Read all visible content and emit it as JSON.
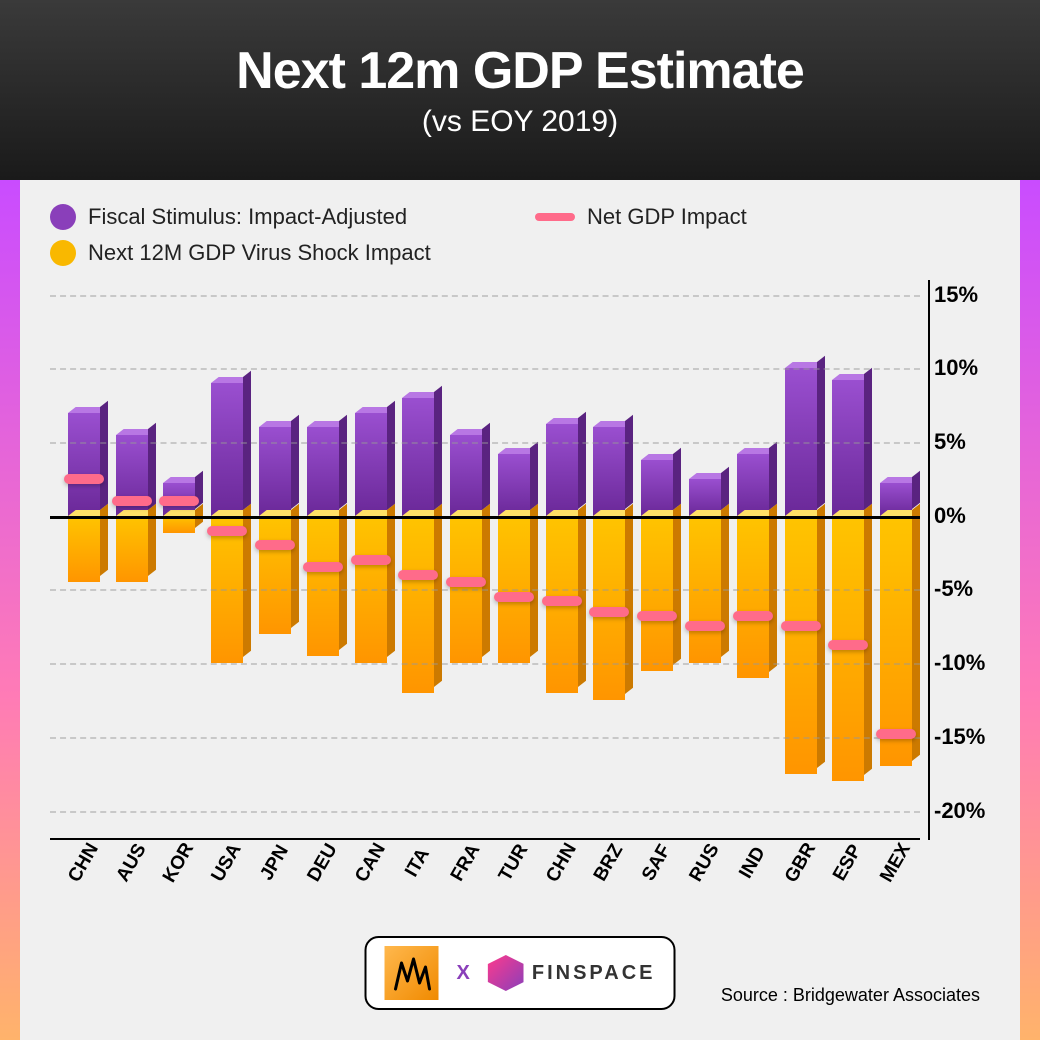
{
  "title": "Next 12m GDP Estimate",
  "subtitle": "(vs EOY 2019)",
  "legend": {
    "fiscal": "Fiscal Stimulus: Impact-Adjusted",
    "virus": "Next 12M GDP Virus Shock Impact",
    "net": "Net GDP Impact"
  },
  "colors": {
    "purple_top": "#b877e4",
    "purple_front_start": "#9a4fd0",
    "purple_front_end": "#6a2898",
    "purple_side": "#5a2380",
    "yellow_top": "#ffe066",
    "yellow_front_start": "#ffc400",
    "yellow_front_end": "#ff9500",
    "yellow_side": "#cc7a00",
    "net": "#ff6b8a",
    "grid": "#999999",
    "bg": "#f0f0f0",
    "header_start": "#3a3a3a",
    "header_end": "#1a1a1a",
    "edge_top": "#c94cff",
    "edge_mid": "#ff7bb6",
    "edge_bot": "#ffb36b"
  },
  "chart": {
    "type": "bar",
    "ymin": -22,
    "ymax": 16,
    "yticks": [
      15,
      10,
      5,
      0,
      -5,
      -10,
      -15,
      -20
    ],
    "ytick_labels": [
      "15%",
      "10%",
      "5%",
      "0%",
      "-5%",
      "-10%",
      "-15%",
      "-20%"
    ],
    "countries": [
      "CHN",
      "AUS",
      "KOR",
      "USA",
      "JPN",
      "DEU",
      "CAN",
      "ITA",
      "FRA",
      "TUR",
      "CHN",
      "BRZ",
      "SAF",
      "RUS",
      "IND",
      "GBR",
      "ESP",
      "MEX"
    ],
    "fiscal": [
      7.0,
      5.5,
      2.2,
      9.0,
      6.0,
      6.0,
      7.0,
      8.0,
      5.5,
      4.2,
      6.2,
      6.0,
      3.8,
      2.5,
      4.2,
      10.0,
      9.2,
      2.2
    ],
    "virus": [
      -4.5,
      -4.5,
      -1.2,
      -10.0,
      -8.0,
      -9.5,
      -10.0,
      -12.0,
      -10.0,
      -10.0,
      -12.0,
      -12.5,
      -10.5,
      -10.0,
      -11.0,
      -17.5,
      -18.0,
      -17.0
    ],
    "net": [
      2.5,
      1.0,
      1.0,
      -1.0,
      -2.0,
      -3.5,
      -3.0,
      -4.0,
      -4.5,
      -5.5,
      -5.8,
      -6.5,
      -6.8,
      -7.5,
      -6.8,
      -7.5,
      -8.8,
      -14.8
    ]
  },
  "footer": {
    "brand_x": "X",
    "finspace": "FINSPACE"
  },
  "source": "Source : Bridgewater Associates"
}
